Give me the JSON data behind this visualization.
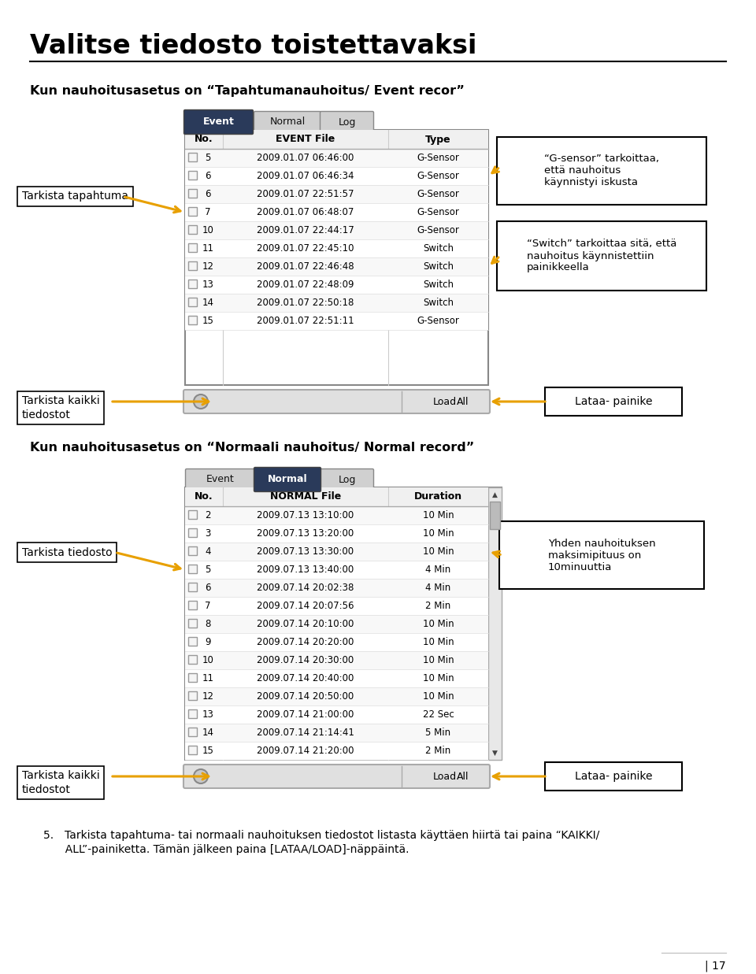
{
  "title": "Valitse tiedosto toistettavaksi",
  "subtitle1": "Kun nauhoitusasetus on “Tapahtumanauhoitus/ Event recor”",
  "subtitle2": "Kun nauhoitusasetus on “Normaali nauhoitus/ Normal record”",
  "footer_line1": "5. Tarkista tapahtuma- tai normaali nauhoituksen tiedostot listasta käyttäen hiirtä tai paina “KAIKKI/",
  "footer_line2": "  ALL”-painiketta. Tämän jälkeen paina [LATAA/LOAD]-näppäintä.",
  "page_number": "| 17",
  "bg_color": "#ffffff",
  "arrow_color": "#e8a000",
  "label_tarkista_tapahtuma": "Tarkista tapahtuma",
  "label_tarkista_kaikki1": "Tarkista kaikki\ntiedostot",
  "label_lataa_painike1": "Lataa- painike",
  "label_gsensor": "“G-sensor” tarkoittaa,\nettä nauhoitus\nkäynnistyi iskusta",
  "label_switch": "“Switch” tarkoittaa sitä, että\nnauhoitus käynnistettiin\npainikkeella",
  "label_tarkista_tiedosto": "Tarkista tiedosto",
  "label_yhden": "Yhden nauhoituksen\nmaksimipituus on\n10minuuttia",
  "label_tarkista_kaikki2": "Tarkista kaikki\ntiedostot",
  "label_lataa_painike2": "Lataa- painike",
  "event_tabs": [
    "Event",
    "Normal",
    "Log"
  ],
  "event_headers": [
    "No.",
    "EVENT File",
    "Type"
  ],
  "event_rows": [
    [
      "5",
      "2009.01.07 06:46:00",
      "G-Sensor"
    ],
    [
      "6",
      "2009.01.07 06:46:34",
      "G-Sensor"
    ],
    [
      "6",
      "2009.01.07 22:51:57",
      "G-Sensor"
    ],
    [
      "7",
      "2009.01.07 06:48:07",
      "G-Sensor"
    ],
    [
      "10",
      "2009.01.07 22:44:17",
      "G-Sensor"
    ],
    [
      "11",
      "2009.01.07 22:45:10",
      "Switch"
    ],
    [
      "12",
      "2009.01.07 22:46:48",
      "Switch"
    ],
    [
      "13",
      "2009.01.07 22:48:09",
      "Switch"
    ],
    [
      "14",
      "2009.01.07 22:50:18",
      "Switch"
    ],
    [
      "15",
      "2009.01.07 22:51:11",
      "G-Sensor"
    ]
  ],
  "normal_tabs": [
    "Event",
    "Normal",
    "Log"
  ],
  "normal_headers": [
    "No.",
    "NORMAL File",
    "Duration"
  ],
  "normal_rows": [
    [
      "2",
      "2009.07.13 13:10:00",
      "10 Min"
    ],
    [
      "3",
      "2009.07.13 13:20:00",
      "10 Min"
    ],
    [
      "4",
      "2009.07.13 13:30:00",
      "10 Min"
    ],
    [
      "5",
      "2009.07.13 13:40:00",
      "4 Min"
    ],
    [
      "6",
      "2009.07.14 20:02:38",
      "4 Min"
    ],
    [
      "7",
      "2009.07.14 20:07:56",
      "2 Min"
    ],
    [
      "8",
      "2009.07.14 20:10:00",
      "10 Min"
    ],
    [
      "9",
      "2009.07.14 20:20:00",
      "10 Min"
    ],
    [
      "10",
      "2009.07.14 20:30:00",
      "10 Min"
    ],
    [
      "11",
      "2009.07.14 20:40:00",
      "10 Min"
    ],
    [
      "12",
      "2009.07.14 20:50:00",
      "10 Min"
    ],
    [
      "13",
      "2009.07.14 21:00:00",
      "22 Sec"
    ],
    [
      "14",
      "2009.07.14 21:14:41",
      "5 Min"
    ],
    [
      "15",
      "2009.07.14 21:20:00",
      "2 Min"
    ]
  ]
}
